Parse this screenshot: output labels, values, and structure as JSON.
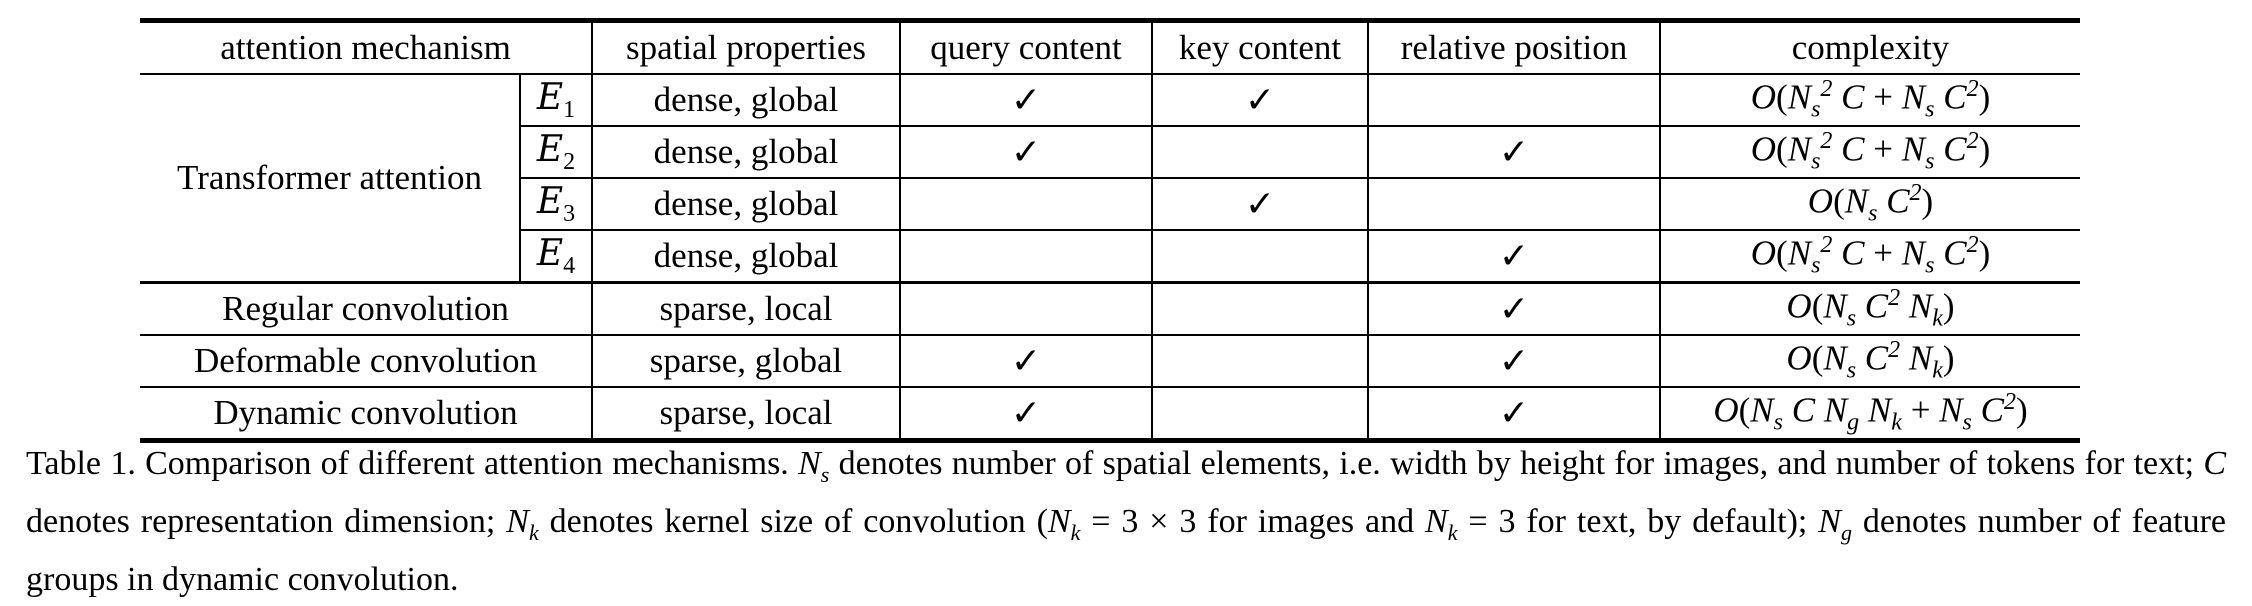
{
  "table": {
    "headers": {
      "mechanism": "attention mechanism",
      "spatial": "spatial properties",
      "query": "query content",
      "key": "key content",
      "relpos": "relative position",
      "complexity": "complexity"
    },
    "check_mark": "✓",
    "transformer_label": "Transformer attention",
    "transformer_rows": [
      {
        "variant": "E",
        "sub": "1",
        "spatial": "dense, global",
        "query": "✓",
        "key": "✓",
        "relpos": "",
        "complexity": "O(N_s^2 C + N_s C^2)"
      },
      {
        "variant": "E",
        "sub": "2",
        "spatial": "dense, global",
        "query": "✓",
        "key": "",
        "relpos": "✓",
        "complexity": "O(N_s^2 C + N_s C^2)"
      },
      {
        "variant": "E",
        "sub": "3",
        "spatial": "dense, global",
        "query": "",
        "key": "✓",
        "relpos": "",
        "complexity": "O(N_s C^2)"
      },
      {
        "variant": "E",
        "sub": "4",
        "spatial": "dense, global",
        "query": "",
        "key": "",
        "relpos": "✓",
        "complexity": "O(N_s^2 C + N_s C^2)"
      }
    ],
    "other_rows": [
      {
        "mechanism": "Regular convolution",
        "spatial": "sparse, local",
        "query": "",
        "key": "",
        "relpos": "✓",
        "complexity": "O(N_s C^2 N_k)"
      },
      {
        "mechanism": "Deformable convolution",
        "spatial": "sparse, global",
        "query": "✓",
        "key": "",
        "relpos": "✓",
        "complexity": "O(N_s C^2 N_k)"
      },
      {
        "mechanism": "Dynamic convolution",
        "spatial": "sparse, local",
        "query": "✓",
        "key": "",
        "relpos": "✓",
        "complexity": "O(N_s C N_g N_k + N_s C^2)"
      }
    ]
  },
  "caption": {
    "label": "Table 1.",
    "text": "Comparison of different attention mechanisms. N_s denotes number of spatial elements, i.e. width by height for images, and number of tokens for text; C denotes representation dimension; N_k denotes kernel size of convolution (N_k = 3 × 3 for images and N_k = 3 for text, by default); N_g denotes number of feature groups in dynamic convolution."
  }
}
